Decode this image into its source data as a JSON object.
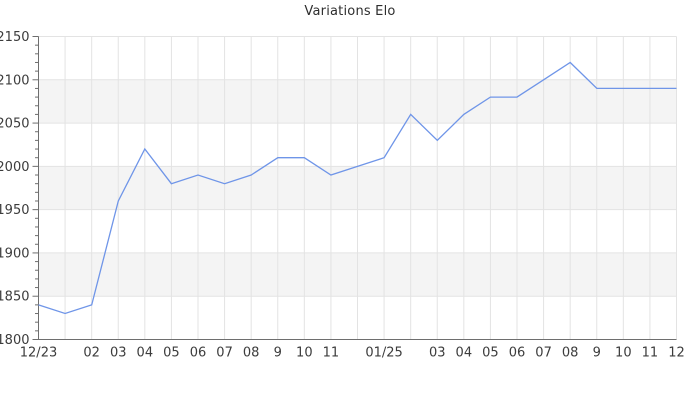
{
  "chart_data": {
    "type": "line",
    "title": "Variations Elo",
    "x_labels": [
      "12/23",
      "",
      "02",
      "03",
      "04",
      "05",
      "06",
      "07",
      "08",
      "9",
      "10",
      "11",
      "",
      "01/25",
      "",
      "03",
      "04",
      "05",
      "06",
      "07",
      "08",
      "9",
      "10",
      "11",
      "12"
    ],
    "values": [
      1840,
      1830,
      1840,
      1960,
      2020,
      1980,
      1990,
      1980,
      1990,
      2010,
      2010,
      1990,
      2000,
      2010,
      2060,
      2030,
      2060,
      2080,
      2080,
      2100,
      2120,
      2090,
      2090,
      2090,
      2090
    ],
    "series_name": "Elo",
    "xlabel": "",
    "ylabel": "",
    "ylim": [
      1800,
      2150
    ],
    "y_major_step": 50,
    "y_minor_step": 10,
    "grid": "on",
    "banded_background": "alternating horizontal bands every 50",
    "legend_position": "none",
    "colors": {
      "line": "#6f95e8",
      "band_gray": "#f4f4f4",
      "gridline": "#e3e3e3",
      "axis": "#6e6e6e",
      "tick_text": "#3c3c3c",
      "title_text": "#2e2e2e",
      "background": "#ffffff"
    }
  }
}
